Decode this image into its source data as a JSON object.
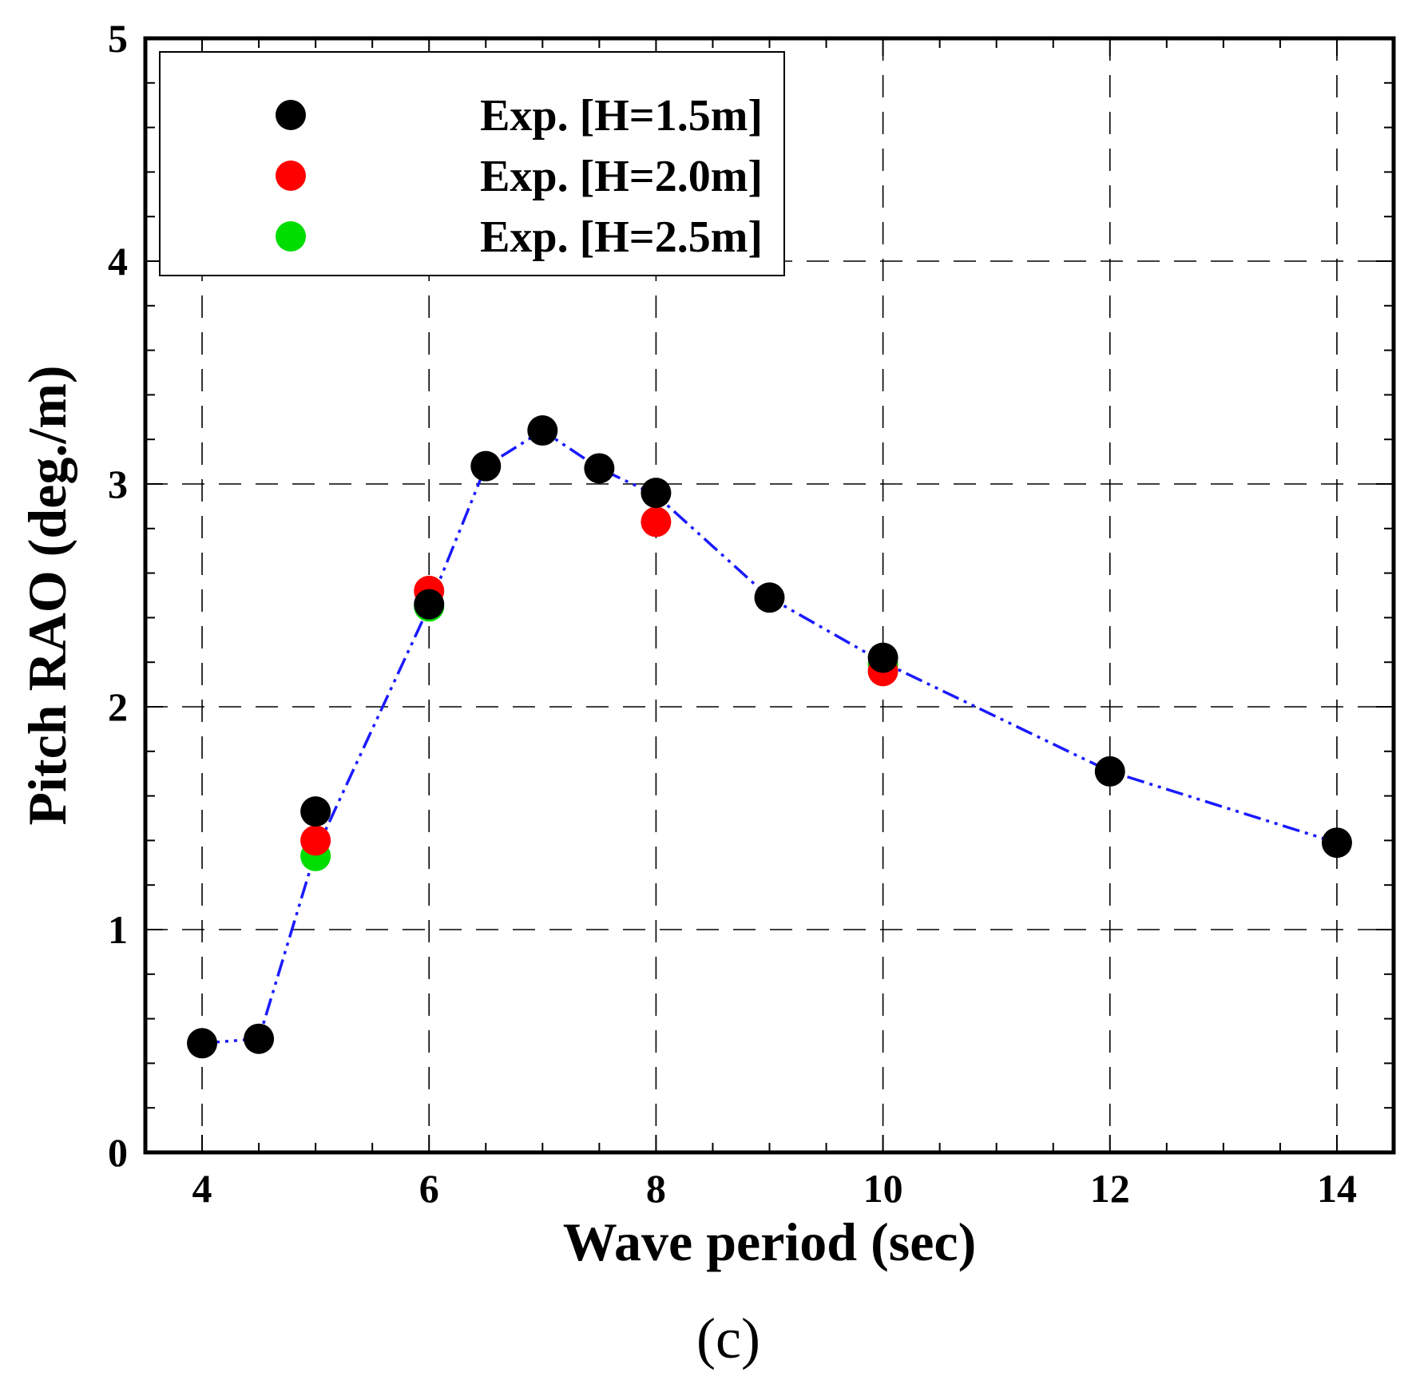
{
  "chart_data": {
    "type": "scatter",
    "title": "",
    "xlabel": "Wave period (sec)",
    "ylabel": "Pitch RAO (deg./m)",
    "caption": "(c)",
    "xlim": [
      3.5,
      14.5
    ],
    "ylim": [
      0,
      5
    ],
    "xticks": [
      4,
      6,
      8,
      10,
      12,
      14
    ],
    "yticks": [
      0,
      1,
      2,
      3,
      4,
      5
    ],
    "grid": true,
    "legend_position": "top-left",
    "series": [
      {
        "name": "",
        "kind": "line",
        "color": "#1a1aff",
        "x": [
          4,
          4.5,
          5,
          6,
          6.5,
          7,
          7.5,
          8,
          9,
          10,
          12,
          14
        ],
        "y": [
          0.49,
          0.51,
          1.35,
          2.45,
          3.08,
          3.24,
          3.07,
          2.95,
          2.49,
          2.2,
          1.71,
          1.39
        ]
      },
      {
        "name": "Exp. [H=1.5m]",
        "kind": "scatter",
        "color": "#000000",
        "x": [
          4,
          4.5,
          5,
          6,
          6.5,
          7,
          7.5,
          8,
          9,
          10,
          12,
          14
        ],
        "y": [
          0.49,
          0.51,
          1.53,
          2.46,
          3.08,
          3.24,
          3.07,
          2.96,
          2.49,
          2.22,
          1.71,
          1.39
        ]
      },
      {
        "name": "Exp. [H=2.0m]",
        "kind": "scatter",
        "color": "#ff0000",
        "x": [
          5,
          6,
          8,
          10
        ],
        "y": [
          1.4,
          2.52,
          2.83,
          2.16
        ]
      },
      {
        "name": "Exp. [H=2.5m]",
        "kind": "scatter",
        "color": "#00dd00",
        "x": [
          5,
          6,
          10
        ],
        "y": [
          1.33,
          2.45,
          2.19
        ]
      }
    ]
  }
}
